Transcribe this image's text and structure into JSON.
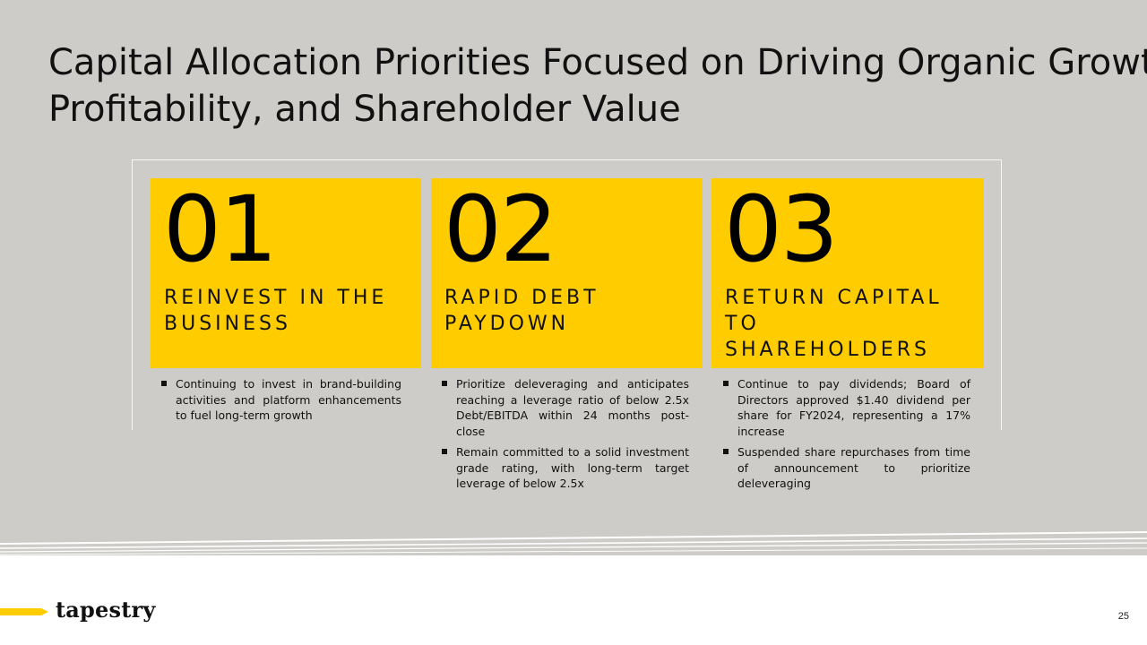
{
  "slide": {
    "title_line1": "Capital Allocation Priorities Focused on Driving Organic Growth,",
    "title_line2": "Profitability, and Shareholder Value",
    "page_number": "25",
    "brand": "tapestry"
  },
  "colors": {
    "background": "#cdccc9",
    "accent_yellow": "#ffcc00",
    "text": "#111111"
  },
  "priorities": [
    {
      "number": "01",
      "label": "REINVEST IN THE BUSINESS",
      "bullets": [
        "Continuing to invest in brand-building activities and platform enhancements to fuel long-term growth"
      ]
    },
    {
      "number": "02",
      "label": "RAPID DEBT PAYDOWN",
      "bullets": [
        "Prioritize deleveraging and anticipates reaching a leverage ratio of below 2.5x Debt/EBITDA within 24 months post-close",
        "Remain committed to a solid investment grade rating, with long-term target leverage of below 2.5x"
      ]
    },
    {
      "number": "03",
      "label": "RETURN CAPITAL TO SHAREHOLDERS",
      "bullets": [
        "Continue to pay dividends; Board of Directors approved $1.40 dividend per share for FY2024, representing a 17% increase",
        "Suspended share repurchases from time of announcement to prioritize deleveraging"
      ]
    }
  ]
}
